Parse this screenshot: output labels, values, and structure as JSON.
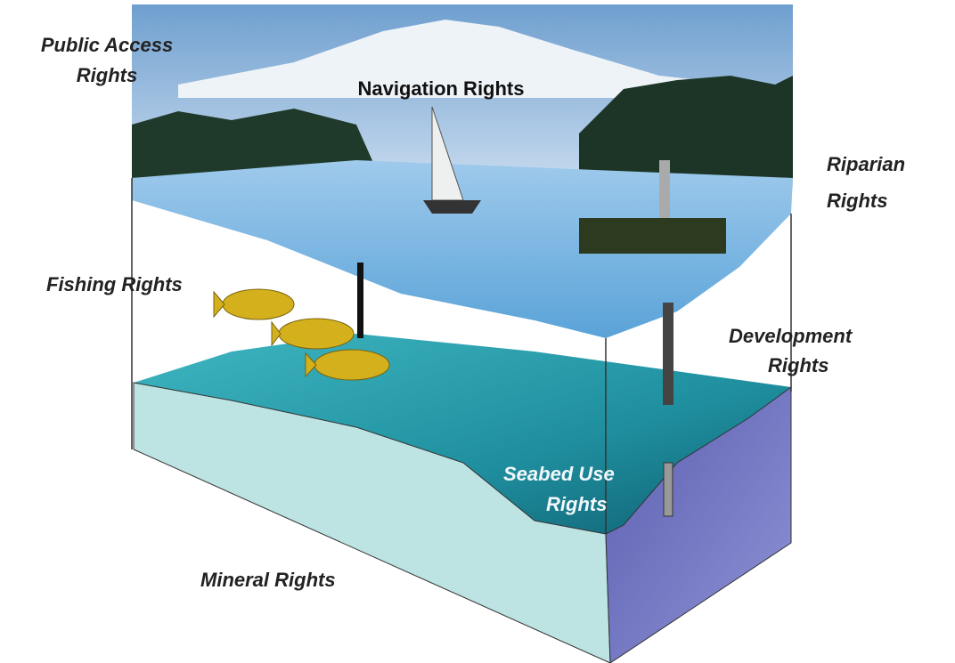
{
  "labels": [
    {
      "id": "public-access",
      "lines": [
        "Public Access",
        "Rights"
      ]
    },
    {
      "id": "navigation",
      "lines": [
        "Navigation Rights"
      ]
    },
    {
      "id": "riparian",
      "lines": [
        "Riparian",
        "Rights"
      ]
    },
    {
      "id": "fishing",
      "lines": [
        "Fishing Rights"
      ]
    },
    {
      "id": "development",
      "lines": [
        "Development",
        "Rights"
      ]
    },
    {
      "id": "seabed-use",
      "lines": [
        "Seabed Use",
        "Rights"
      ]
    },
    {
      "id": "mineral",
      "lines": [
        "Mineral Rights"
      ]
    }
  ]
}
